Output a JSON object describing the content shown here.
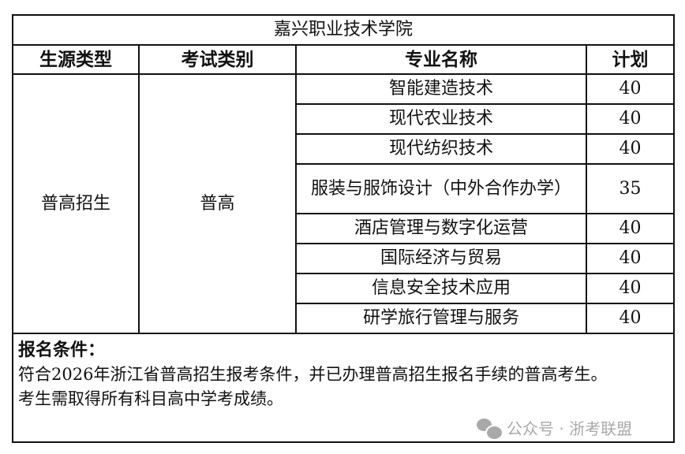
{
  "title": "嘉兴职业技术学院",
  "headers": [
    "生源类型",
    "考试类别",
    "专业名称",
    "计划"
  ],
  "source_type": "普高招生",
  "exam_category": "普高",
  "rows": [
    {
      "major": "智能建造技术",
      "plan": "40"
    },
    {
      "major": "现代农业技术",
      "plan": "40"
    },
    {
      "major": "现代纺织技术",
      "plan": "40"
    },
    {
      "major": "服装与服饰设计（中外合作办学）",
      "plan": "35"
    },
    {
      "major": "酒店管理与数字化运营",
      "plan": "40"
    },
    {
      "major": "国际经济与贸易",
      "plan": "40"
    },
    {
      "major": "信息安全技术应用",
      "plan": "40"
    },
    {
      "major": "研学旅行管理与服务",
      "plan": "40"
    }
  ],
  "conditions": {
    "title": "报名条件：",
    "lines": [
      "符合2026年浙江省普高招生报考条件，并已办理普高招生报名手续的普高考生。",
      "考生需取得所有科目高中学考成绩。"
    ]
  },
  "watermark": "公众号 · 浙考联盟"
}
